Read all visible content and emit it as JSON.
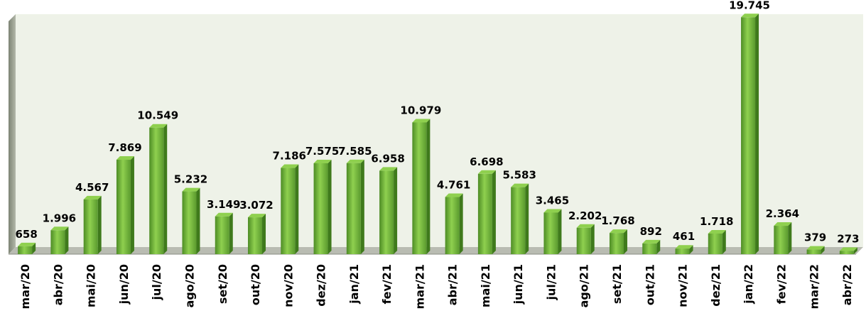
{
  "chart_data": {
    "type": "bar",
    "title": "",
    "xlabel": "",
    "ylabel": "",
    "ylim": [
      0,
      20000
    ],
    "grid": false,
    "categories": [
      "mar/20",
      "abr/20",
      "mai/20",
      "jun/20",
      "jul/20",
      "ago/20",
      "set/20",
      "out/20",
      "nov/20",
      "dez/20",
      "jan/21",
      "fev/21",
      "mar/21",
      "abr/21",
      "mai/21",
      "jun/21",
      "jul/21",
      "ago/21",
      "set/21",
      "out/21",
      "nov/21",
      "dez/21",
      "jan/22",
      "fev/22",
      "mar/22",
      "abr/22"
    ],
    "values": [
      658,
      1996,
      4567,
      7869,
      10549,
      5232,
      3149,
      3072,
      7186,
      7575,
      7585,
      6958,
      10979,
      4761,
      6698,
      5583,
      3465,
      2202,
      1768,
      892,
      461,
      1718,
      19745,
      2364,
      379,
      273
    ],
    "value_labels": [
      "658",
      "1.996",
      "4.567",
      "7.869",
      "10.549",
      "5.232",
      "3.149",
      "3.072",
      "7.186",
      "7.575",
      "7.585",
      "6.958",
      "10.979",
      "4.761",
      "6.698",
      "5.583",
      "3.465",
      "2.202",
      "1.768",
      "892",
      "461",
      "1.718",
      "19.745",
      "2.364",
      "379",
      "273"
    ],
    "colors": {
      "bar_front": "#6fae3c",
      "bar_light": "#8fd04f",
      "bar_dark": "#3f7a1c",
      "plot_background": "#eef2e8",
      "wall_side": "#9aa08f",
      "floor": "#b9bcb2"
    }
  }
}
